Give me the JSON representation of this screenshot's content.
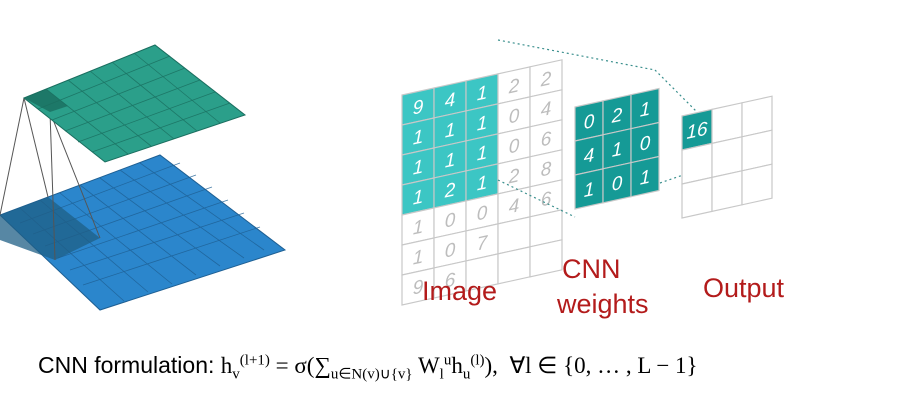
{
  "labels": {
    "image": "Image",
    "weights_line1": "CNN",
    "weights_line2": "weights",
    "output": "Output"
  },
  "image_grid": [
    [
      "9",
      "4",
      "1",
      "2",
      "2"
    ],
    [
      "1",
      "1",
      "1",
      "0",
      "4"
    ],
    [
      "1",
      "1",
      "1",
      "0",
      "6"
    ],
    [
      "1",
      "2",
      "1",
      "2",
      "8"
    ],
    [
      "1",
      "0",
      "0",
      "4",
      "6"
    ],
    [
      "1",
      "0",
      "7",
      "",
      ""
    ],
    [
      "9",
      "6",
      "",
      "",
      ""
    ]
  ],
  "weights_grid": [
    [
      "0",
      "2",
      "1"
    ],
    [
      "4",
      "1",
      "0"
    ],
    [
      "1",
      "0",
      "1"
    ]
  ],
  "output_value": "16",
  "formula": {
    "prefix": "CNN formulation: ",
    "h": "h",
    "sub_v": "v",
    "sup_l1": "(l+1)",
    "eq": " = σ(",
    "sum": "∑",
    "sum_sub": "u∈N(v)∪{v}",
    "W": " W",
    "W_sub": "l",
    "W_sup": "u",
    "h2": "h",
    "h2_sub": "u",
    "h2_sup": "(l)",
    "close": "),",
    "forall": "∀l ∈ {0, … , L − 1}"
  },
  "colors": {
    "teal": "#3cc6c4",
    "teal_dark": "#159a96",
    "green_top": "#2b9f8a",
    "blue_bottom": "#2b86cc",
    "label_red": "#b31b1b"
  }
}
